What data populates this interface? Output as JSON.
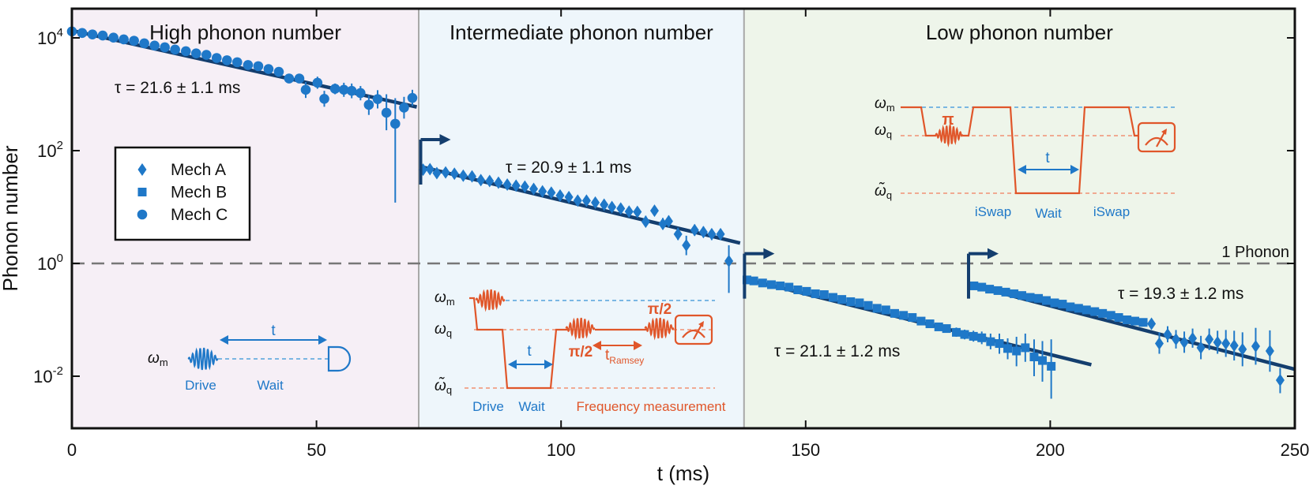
{
  "chart_data": {
    "type": "scatter",
    "x_label": "t (ms)",
    "y_label": "Phonon number",
    "y_scale": "log",
    "xlim": [
      0,
      250
    ],
    "ylim": [
      0.004,
      100000
    ],
    "x_ticks": [
      "0",
      "50",
      "100",
      "150",
      "200",
      "250"
    ],
    "y_ticks": [
      {
        "base": "10",
        "exp": "-2",
        "value": 0.01
      },
      {
        "base": "10",
        "exp": "0",
        "value": 1
      },
      {
        "base": "10",
        "exp": "2",
        "value": 100
      },
      {
        "base": "10",
        "exp": "4",
        "value": 10000
      }
    ],
    "regions": [
      {
        "label": "High phonon number",
        "x_start": 0,
        "x_end": 70.9,
        "color": "#f6eff6"
      },
      {
        "label": "Intermediate phonon number",
        "x_start": 70.9,
        "x_end": 137.4,
        "color": "#eef6fb"
      },
      {
        "label": "Low phonon number",
        "x_start": 137.4,
        "x_end": 250,
        "color": "#eef5ea"
      }
    ],
    "reference_line": {
      "label": "1 Phonon",
      "y": 1
    },
    "legend": {
      "placement": "left",
      "entries": [
        {
          "label": "Mech A",
          "marker": "diamond"
        },
        {
          "label": "Mech B",
          "marker": "square"
        },
        {
          "label": "Mech C",
          "marker": "circle"
        }
      ]
    },
    "colors": {
      "data": "#1f78c8",
      "fit": "#143e6e",
      "pulse": "#e0562a"
    },
    "fits": [
      {
        "tau_label": "τ = 21.6 ± 1.1 ms",
        "x_start": 0,
        "x_end": 70.5,
        "y_start": 13500,
        "y_end": 595
      },
      {
        "tau_label": "τ = 20.9 ± 1.1 ms",
        "x_start": 71.3,
        "x_end": 136.6,
        "y_start": 52,
        "y_end": 2.3
      },
      {
        "tau_label": "τ = 21.1 ± 1.2 ms",
        "x_start": 137.6,
        "x_end": 208.4,
        "y_start": 0.53,
        "y_end": 0.016
      },
      {
        "tau_label": "τ = 19.3 ± 1.2 ms",
        "x_start": 183.3,
        "x_end": 250,
        "y_start": 0.42,
        "y_end": 0.0133
      }
    ],
    "series": [
      {
        "name": "Mech C",
        "marker": "circle",
        "points": [
          {
            "x": 0.0,
            "y": 13000
          },
          {
            "x": 2.1,
            "y": 12200
          },
          {
            "x": 4.2,
            "y": 11500
          },
          {
            "x": 6.3,
            "y": 11000
          },
          {
            "x": 8.5,
            "y": 10100
          },
          {
            "x": 10.6,
            "y": 9400
          },
          {
            "x": 12.7,
            "y": 8900
          },
          {
            "x": 14.8,
            "y": 8000
          },
          {
            "x": 16.9,
            "y": 7300
          },
          {
            "x": 19.0,
            "y": 6800
          },
          {
            "x": 21.1,
            "y": 6200
          },
          {
            "x": 23.3,
            "y": 5800
          },
          {
            "x": 25.4,
            "y": 5300
          },
          {
            "x": 27.5,
            "y": 5000
          },
          {
            "x": 29.6,
            "y": 4400
          },
          {
            "x": 31.7,
            "y": 4000
          },
          {
            "x": 33.8,
            "y": 3700
          },
          {
            "x": 36.0,
            "y": 3300
          },
          {
            "x": 38.1,
            "y": 3150
          },
          {
            "x": 40.2,
            "y": 2800
          },
          {
            "x": 42.3,
            "y": 2500
          },
          {
            "x": 44.4,
            "y": 1900
          },
          {
            "x": 46.5,
            "y": 1900,
            "err": [
              1650,
              2200
            ]
          },
          {
            "x": 47.8,
            "y": 1200,
            "err": [
              860,
              1650
            ]
          },
          {
            "x": 50.2,
            "y": 1600,
            "err": [
              1250,
              2050
            ]
          },
          {
            "x": 51.6,
            "y": 830,
            "err": [
              600,
              1150
            ]
          },
          {
            "x": 53.8,
            "y": 1250,
            "err": [
              1000,
              1550
            ]
          },
          {
            "x": 55.6,
            "y": 1200,
            "err": [
              900,
              1600
            ]
          },
          {
            "x": 57.2,
            "y": 1150,
            "err": [
              850,
              1550
            ]
          },
          {
            "x": 59.0,
            "y": 1050,
            "err": [
              780,
              1400
            ]
          },
          {
            "x": 60.7,
            "y": 650,
            "err": [
              430,
              960
            ]
          },
          {
            "x": 62.5,
            "y": 820,
            "err": [
              560,
              1180
            ]
          },
          {
            "x": 64.3,
            "y": 470,
            "err": [
              230,
              1000
            ]
          },
          {
            "x": 66.1,
            "y": 300,
            "err": [
              12,
              850
            ]
          },
          {
            "x": 67.9,
            "y": 580,
            "err": [
              370,
              900
            ]
          },
          {
            "x": 69.6,
            "y": 860,
            "err": [
              620,
              1200
            ]
          }
        ]
      },
      {
        "name": "Mech A",
        "marker": "diamond",
        "points": [
          {
            "x": 71.8,
            "y": 46
          },
          {
            "x": 73.2,
            "y": 47
          },
          {
            "x": 74.6,
            "y": 40
          },
          {
            "x": 76.4,
            "y": 41
          },
          {
            "x": 78.2,
            "y": 39
          },
          {
            "x": 80.0,
            "y": 36
          },
          {
            "x": 81.8,
            "y": 35
          },
          {
            "x": 83.6,
            "y": 30
          },
          {
            "x": 85.4,
            "y": 29
          },
          {
            "x": 87.2,
            "y": 27
          },
          {
            "x": 89.0,
            "y": 25
          },
          {
            "x": 90.8,
            "y": 24
          },
          {
            "x": 92.6,
            "y": 23
          },
          {
            "x": 94.4,
            "y": 21
          },
          {
            "x": 96.2,
            "y": 19
          },
          {
            "x": 98.0,
            "y": 18
          },
          {
            "x": 99.8,
            "y": 16
          },
          {
            "x": 101.6,
            "y": 15
          },
          {
            "x": 103.4,
            "y": 13
          },
          {
            "x": 105.2,
            "y": 13
          },
          {
            "x": 107.0,
            "y": 12
          },
          {
            "x": 108.8,
            "y": 11
          },
          {
            "x": 110.4,
            "y": 10
          },
          {
            "x": 112.2,
            "y": 9.4
          },
          {
            "x": 113.9,
            "y": 8.3
          },
          {
            "x": 115.6,
            "y": 8.2
          },
          {
            "x": 117.3,
            "y": 5.5,
            "err": [
              4.5,
              7.0
            ]
          },
          {
            "x": 119.1,
            "y": 8.6,
            "err": [
              7.0,
              10.5
            ]
          },
          {
            "x": 120.8,
            "y": 5.0,
            "err": [
              4.0,
              6.4
            ]
          },
          {
            "x": 122.0,
            "y": 5.6,
            "err": [
              4.5,
              7.0
            ]
          },
          {
            "x": 123.9,
            "y": 3.3,
            "err": [
              2.6,
              4.3
            ]
          },
          {
            "x": 125.6,
            "y": 2.1,
            "err": [
              1.4,
              3.1
            ]
          },
          {
            "x": 127.3,
            "y": 3.9,
            "err": [
              3.1,
              4.9
            ]
          },
          {
            "x": 129.1,
            "y": 3.6,
            "err": [
              2.9,
              4.5
            ]
          },
          {
            "x": 130.8,
            "y": 3.3,
            "err": [
              2.6,
              4.1
            ]
          },
          {
            "x": 132.6,
            "y": 3.3,
            "err": [
              2.6,
              4.1
            ]
          },
          {
            "x": 134.3,
            "y": 1.1,
            "err": [
              0.3,
              2.1
            ]
          }
        ]
      },
      {
        "name": "Mech B",
        "marker": "square",
        "points": [
          {
            "x": 138.0,
            "y": 0.51
          },
          {
            "x": 139.4,
            "y": 0.49
          },
          {
            "x": 141.2,
            "y": 0.45
          },
          {
            "x": 143.0,
            "y": 0.42
          },
          {
            "x": 144.8,
            "y": 0.4
          },
          {
            "x": 146.6,
            "y": 0.38
          },
          {
            "x": 148.4,
            "y": 0.34
          },
          {
            "x": 150.2,
            "y": 0.32
          },
          {
            "x": 152.0,
            "y": 0.29
          },
          {
            "x": 153.8,
            "y": 0.28
          },
          {
            "x": 155.6,
            "y": 0.25
          },
          {
            "x": 157.4,
            "y": 0.23
          },
          {
            "x": 159.2,
            "y": 0.21
          },
          {
            "x": 161.0,
            "y": 0.2
          },
          {
            "x": 162.8,
            "y": 0.18
          },
          {
            "x": 164.6,
            "y": 0.16
          },
          {
            "x": 166.4,
            "y": 0.15
          },
          {
            "x": 168.2,
            "y": 0.13
          },
          {
            "x": 170.0,
            "y": 0.12
          },
          {
            "x": 171.8,
            "y": 0.11
          },
          {
            "x": 173.6,
            "y": 0.095
          },
          {
            "x": 175.4,
            "y": 0.085
          },
          {
            "x": 177.2,
            "y": 0.075
          },
          {
            "x": 178.8,
            "y": 0.07
          },
          {
            "x": 180.8,
            "y": 0.06,
            "err": [
              0.05,
              0.073
            ]
          },
          {
            "x": 182.5,
            "y": 0.055,
            "err": [
              0.045,
              0.067
            ]
          },
          {
            "x": 184.3,
            "y": 0.051,
            "err": [
              0.041,
              0.064
            ]
          },
          {
            "x": 186.0,
            "y": 0.048,
            "err": [
              0.037,
              0.062
            ]
          },
          {
            "x": 187.8,
            "y": 0.041,
            "err": [
              0.03,
              0.057
            ]
          },
          {
            "x": 189.6,
            "y": 0.038,
            "err": [
              0.025,
              0.057
            ]
          },
          {
            "x": 191.3,
            "y": 0.031,
            "err": [
              0.02,
              0.047
            ]
          },
          {
            "x": 193.1,
            "y": 0.028,
            "err": [
              0.015,
              0.05
            ]
          },
          {
            "x": 194.9,
            "y": 0.032,
            "err": [
              0.018,
              0.057
            ]
          },
          {
            "x": 196.7,
            "y": 0.022,
            "err": [
              0.01,
              0.045
            ]
          },
          {
            "x": 198.4,
            "y": 0.019,
            "err": [
              0.008,
              0.042
            ]
          },
          {
            "x": 200.2,
            "y": 0.015,
            "err": [
              0.004,
              0.045
            ]
          },
          {
            "x": 184.4,
            "y": 0.4
          },
          {
            "x": 186.0,
            "y": 0.38
          },
          {
            "x": 187.6,
            "y": 0.35
          },
          {
            "x": 189.3,
            "y": 0.33
          },
          {
            "x": 190.9,
            "y": 0.31
          },
          {
            "x": 192.6,
            "y": 0.29
          },
          {
            "x": 194.2,
            "y": 0.27
          },
          {
            "x": 195.9,
            "y": 0.25
          },
          {
            "x": 197.6,
            "y": 0.24
          },
          {
            "x": 199.2,
            "y": 0.22
          },
          {
            "x": 200.9,
            "y": 0.2
          },
          {
            "x": 202.5,
            "y": 0.19
          },
          {
            "x": 204.1,
            "y": 0.17
          },
          {
            "x": 205.8,
            "y": 0.16
          },
          {
            "x": 207.4,
            "y": 0.15
          },
          {
            "x": 209.1,
            "y": 0.14
          },
          {
            "x": 210.7,
            "y": 0.13
          },
          {
            "x": 212.4,
            "y": 0.12
          },
          {
            "x": 214.0,
            "y": 0.11
          },
          {
            "x": 215.7,
            "y": 0.1
          },
          {
            "x": 217.3,
            "y": 0.095
          },
          {
            "x": 219.0,
            "y": 0.09
          }
        ]
      },
      {
        "name": "Mech A",
        "marker": "diamond",
        "points": [
          {
            "x": 220.7,
            "y": 0.085,
            "err": [
              0.07,
              0.1
            ]
          },
          {
            "x": 222.3,
            "y": 0.038,
            "err": [
              0.025,
              0.06
            ]
          },
          {
            "x": 224.0,
            "y": 0.055,
            "err": [
              0.04,
              0.077
            ]
          },
          {
            "x": 225.7,
            "y": 0.045,
            "err": [
              0.031,
              0.066
            ]
          },
          {
            "x": 227.4,
            "y": 0.04,
            "err": [
              0.026,
              0.062
            ]
          },
          {
            "x": 229.1,
            "y": 0.047,
            "err": [
              0.032,
              0.07
            ]
          },
          {
            "x": 230.8,
            "y": 0.032,
            "err": [
              0.02,
              0.052
            ]
          },
          {
            "x": 232.5,
            "y": 0.045,
            "err": [
              0.029,
              0.07
            ]
          },
          {
            "x": 234.2,
            "y": 0.04,
            "err": [
              0.025,
              0.064
            ]
          },
          {
            "x": 235.9,
            "y": 0.038,
            "err": [
              0.022,
              0.066
            ]
          },
          {
            "x": 237.6,
            "y": 0.035,
            "err": [
              0.019,
              0.064
            ]
          },
          {
            "x": 239.3,
            "y": 0.03,
            "err": [
              0.015,
              0.06
            ]
          },
          {
            "x": 242.0,
            "y": 0.034,
            "err": [
              0.016,
              0.072
            ]
          },
          {
            "x": 244.9,
            "y": 0.028,
            "err": [
              0.012,
              0.065
            ]
          },
          {
            "x": 247.0,
            "y": 0.0085,
            "err": [
              0.005,
              0.014
            ]
          }
        ]
      }
    ],
    "arrows": [
      {
        "x": 71.3,
        "y": 100
      },
      {
        "x": 137.5,
        "y": 0.95
      },
      {
        "x": 183.3,
        "y": 0.95
      }
    ]
  },
  "insets": {
    "high": {
      "omega_m": "ω",
      "omega_m_sub": "m",
      "drive": "Drive",
      "wait": "Wait",
      "t": "t"
    },
    "intermediate": {
      "omega_m": "ω",
      "omega_m_sub": "m",
      "omega_q": "ω",
      "omega_q_sub": "q",
      "omega_q_tilde": "ω̃",
      "omega_q_tilde_sub": "q",
      "t": "t",
      "pi_half_1": "π/2",
      "pi_half_2": "π/2",
      "t_ramsey": "t",
      "t_ramsey_sub": "Ramsey",
      "drive": "Drive",
      "wait": "Wait",
      "freq_meas": "Frequency measurement"
    },
    "low": {
      "omega_m": "ω",
      "omega_m_sub": "m",
      "omega_q": "ω",
      "omega_q_sub": "q",
      "omega_q_tilde": "ω̃",
      "omega_q_tilde_sub": "q",
      "pi": "π",
      "t": "t",
      "iswap_1": "iSwap",
      "wait": "Wait",
      "iswap_2": "iSwap"
    }
  }
}
